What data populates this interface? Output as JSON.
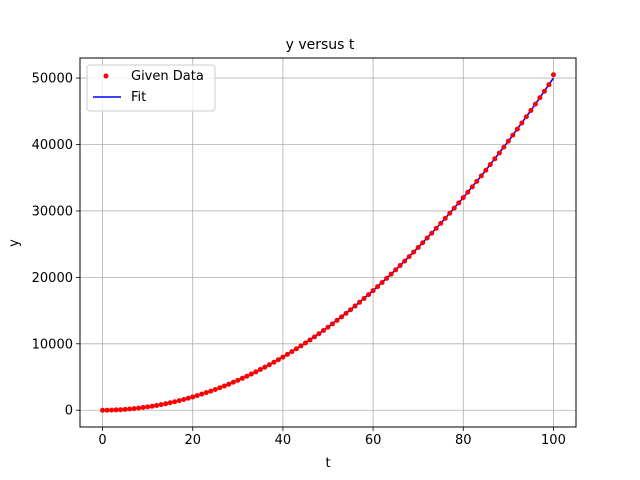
{
  "chart_data": {
    "type": "scatter",
    "title": "y versus t",
    "xlabel": "t",
    "ylabel": "y",
    "xlim": [
      -5,
      105
    ],
    "ylim": [
      -2524.75,
      53019.75
    ],
    "xticks": [
      0,
      20,
      40,
      60,
      80,
      100
    ],
    "yticks": [
      0,
      10000,
      20000,
      30000,
      40000,
      50000
    ],
    "grid": true,
    "legend_position": "top-left",
    "series": [
      {
        "name": "Given Data",
        "kind": "points",
        "color": "#ff0000",
        "x": [
          0,
          1,
          2,
          3,
          4,
          5,
          6,
          7,
          8,
          9,
          10,
          11,
          12,
          13,
          14,
          15,
          16,
          17,
          18,
          19,
          20,
          21,
          22,
          23,
          24,
          25,
          26,
          27,
          28,
          29,
          30,
          31,
          32,
          33,
          34,
          35,
          36,
          37,
          38,
          39,
          40,
          41,
          42,
          43,
          44,
          45,
          46,
          47,
          48,
          49,
          50,
          51,
          52,
          53,
          54,
          55,
          56,
          57,
          58,
          59,
          60,
          61,
          62,
          63,
          64,
          65,
          66,
          67,
          68,
          69,
          70,
          71,
          72,
          73,
          74,
          75,
          76,
          77,
          78,
          79,
          80,
          81,
          82,
          83,
          84,
          85,
          86,
          87,
          88,
          89,
          90,
          91,
          92,
          93,
          94,
          95,
          96,
          97,
          98,
          99,
          100
        ],
        "y": [
          0,
          5,
          20,
          45,
          80,
          125,
          180,
          245,
          320,
          405,
          500,
          605,
          720,
          845,
          980,
          1125,
          1280,
          1445,
          1620,
          1805,
          2000,
          2205,
          2420,
          2645,
          2880,
          3125,
          3380,
          3645,
          3920,
          4205,
          4500,
          4805,
          5120,
          5445,
          5780,
          6125,
          6480,
          6845,
          7220,
          7605,
          8000,
          8405,
          8820,
          9245,
          9680,
          10125,
          10580,
          11045,
          11520,
          12005,
          12500,
          13005,
          13520,
          14045,
          14580,
          15125,
          15680,
          16245,
          16820,
          17405,
          18000,
          18605,
          19220,
          19845,
          20480,
          21125,
          21780,
          22445,
          23120,
          23805,
          24500,
          25205,
          25920,
          26645,
          27380,
          28125,
          28880,
          29645,
          30420,
          31205,
          32000,
          32805,
          33620,
          34445,
          35280,
          36125,
          36980,
          37845,
          38720,
          39605,
          40500,
          41405,
          42320,
          43245,
          44180,
          45125,
          46080,
          47045,
          48020,
          49005,
          50500
        ]
      },
      {
        "name": "Fit",
        "kind": "line",
        "color": "#0000ff",
        "x": [
          0,
          5,
          10,
          15,
          20,
          25,
          30,
          35,
          40,
          45,
          50,
          55,
          60,
          65,
          70,
          75,
          80,
          85,
          90,
          95,
          100
        ],
        "y": [
          0,
          125,
          500,
          1125,
          2000,
          3125,
          4500,
          6125,
          8000,
          10125,
          12500,
          15125,
          18000,
          21125,
          24500,
          28125,
          32000,
          36125,
          40500,
          45125,
          50000
        ]
      }
    ]
  }
}
